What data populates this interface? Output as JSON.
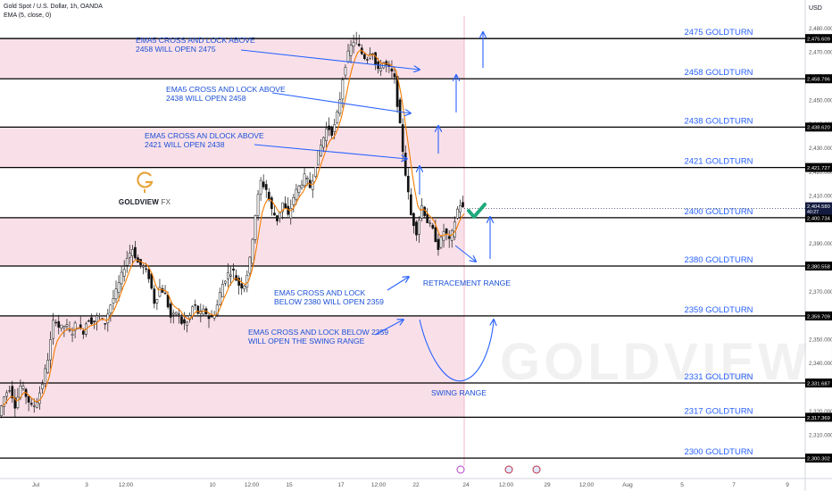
{
  "header": {
    "symbol_line": "Gold Spot / U.S. Dollar, 1h, OANDA",
    "indicator_line": "EMA (5, close, 0)",
    "currency": "USD"
  },
  "brand": {
    "logo_text": "GOLDVIEW",
    "logo_suffix": "FX",
    "watermark": "GOLDVIEW FX"
  },
  "colors": {
    "level_line": "#000000",
    "level_label": "#2962ff",
    "annotation": "#1a4fd6",
    "arrow": "#2962ff",
    "zone_fill": "#f8dbe4",
    "ema_line": "#f57c00",
    "candle_body": "#111111",
    "price_badge": "#131b3f",
    "check": "#1ea97c"
  },
  "chart_data": {
    "type": "candlestick",
    "instrument": "Gold Spot / U.S. Dollar",
    "timeframe": "1h",
    "source": "OANDA",
    "indicator": "EMA (5, close, 0)",
    "ylim": [
      2297,
      2485
    ],
    "y_ticks": [
      "2,480.000",
      "2,470.000",
      "2,460.000",
      "2,450.000",
      "2,440.000",
      "2,430.000",
      "2,420.000",
      "2,410.000",
      "2,390.000",
      "2,370.000",
      "2,360.000",
      "2,350.000",
      "2,340.000",
      "2,320.000",
      "2,310.000"
    ],
    "x_ticks": [
      "Jul",
      "3",
      "12:00",
      "10",
      "12:00",
      "15",
      "17",
      "12:00",
      "22",
      "24",
      "12:00",
      "29",
      "12:00",
      "Aug",
      "5",
      "7",
      "9"
    ],
    "levels": [
      {
        "price": 2475.609,
        "price_label": "2,475.609",
        "label": "2475 GOLDTURN"
      },
      {
        "price": 2458.796,
        "price_label": "2,458.796",
        "label": "2458 GOLDTURN"
      },
      {
        "price": 2438.62,
        "price_label": "2,438.620",
        "label": "2438 GOLDTURN"
      },
      {
        "price": 2421.727,
        "price_label": "2,421.727",
        "label": "2421 GOLDTURN"
      },
      {
        "price": 2400.734,
        "price_label": "2,400.734",
        "label": "2400 GOLDTURN"
      },
      {
        "price": 2380.558,
        "price_label": "2,380.558",
        "label": "2380 GOLDTURN"
      },
      {
        "price": 2359.709,
        "price_label": "2,359.709",
        "label": "2359 GOLDTURN"
      },
      {
        "price": 2331.687,
        "price_label": "2,331.687",
        "label": "2331 GOLDTURN"
      },
      {
        "price": 2317.369,
        "price_label": "2,317.369",
        "label": "2317 GOLDTURN"
      },
      {
        "price": 2300.302,
        "price_label": "2,300.302",
        "label": "2300 GOLDTURN"
      }
    ],
    "zones": [
      {
        "from": 2458.796,
        "to": 2475.609
      },
      {
        "from": 2421.727,
        "to": 2438.62
      },
      {
        "from": 2380.558,
        "to": 2400.734
      },
      {
        "from": 2317.369,
        "to": 2359.709
      }
    ],
    "current_price": {
      "value": 2404.58,
      "label": "2,404.580",
      "countdown": "40:27"
    },
    "price_path": [
      [
        0.0,
        2318
      ],
      [
        0.012,
        2326
      ],
      [
        0.024,
        2330
      ],
      [
        0.036,
        2322
      ],
      [
        0.048,
        2331
      ],
      [
        0.06,
        2326
      ],
      [
        0.072,
        2321
      ],
      [
        0.084,
        2325
      ],
      [
        0.096,
        2333
      ],
      [
        0.108,
        2344
      ],
      [
        0.12,
        2360
      ],
      [
        0.132,
        2354
      ],
      [
        0.144,
        2356
      ],
      [
        0.156,
        2352
      ],
      [
        0.168,
        2357
      ],
      [
        0.18,
        2352
      ],
      [
        0.192,
        2359
      ],
      [
        0.204,
        2357
      ],
      [
        0.216,
        2360
      ],
      [
        0.228,
        2356
      ],
      [
        0.24,
        2364
      ],
      [
        0.252,
        2369
      ],
      [
        0.264,
        2376
      ],
      [
        0.276,
        2384
      ],
      [
        0.288,
        2388
      ],
      [
        0.3,
        2382
      ],
      [
        0.312,
        2380
      ],
      [
        0.324,
        2376
      ],
      [
        0.336,
        2365
      ],
      [
        0.348,
        2372
      ],
      [
        0.36,
        2368
      ],
      [
        0.372,
        2358
      ],
      [
        0.384,
        2362
      ],
      [
        0.396,
        2356
      ],
      [
        0.408,
        2357
      ],
      [
        0.42,
        2365
      ],
      [
        0.432,
        2360
      ],
      [
        0.444,
        2362
      ],
      [
        0.456,
        2358
      ],
      [
        0.468,
        2362
      ],
      [
        0.48,
        2372
      ],
      [
        0.492,
        2377
      ],
      [
        0.504,
        2379
      ],
      [
        0.516,
        2373
      ],
      [
        0.528,
        2372
      ],
      [
        0.54,
        2381
      ],
      [
        0.552,
        2401
      ],
      [
        0.564,
        2416
      ],
      [
        0.576,
        2413
      ],
      [
        0.588,
        2404
      ],
      [
        0.6,
        2400
      ],
      [
        0.612,
        2407
      ],
      [
        0.624,
        2401
      ],
      [
        0.636,
        2410
      ],
      [
        0.648,
        2414
      ],
      [
        0.66,
        2418
      ],
      [
        0.672,
        2413
      ],
      [
        0.684,
        2425
      ],
      [
        0.696,
        2432
      ],
      [
        0.708,
        2439
      ],
      [
        0.72,
        2436
      ],
      [
        0.732,
        2446
      ],
      [
        0.744,
        2463
      ],
      [
        0.756,
        2471
      ],
      [
        0.768,
        2476
      ],
      [
        0.78,
        2470
      ],
      [
        0.792,
        2467
      ],
      [
        0.804,
        2472
      ],
      [
        0.816,
        2461
      ],
      [
        0.828,
        2466
      ],
      [
        0.84,
        2463
      ],
      [
        0.852,
        2460
      ],
      [
        0.864,
        2440
      ],
      [
        0.876,
        2420
      ],
      [
        0.888,
        2402
      ],
      [
        0.9,
        2395
      ],
      [
        0.912,
        2406
      ],
      [
        0.924,
        2399
      ],
      [
        0.936,
        2395
      ],
      [
        0.948,
        2388
      ],
      [
        0.96,
        2396
      ],
      [
        0.972,
        2390
      ],
      [
        0.984,
        2401
      ],
      [
        0.992,
        2407
      ],
      [
        1.0,
        2404.58
      ]
    ],
    "range_markers": [
      {
        "label": "RETRACEMENT RANGE"
      },
      {
        "label": "SWING RANGE"
      }
    ]
  },
  "annotations": [
    {
      "line1": "EMA5 CROSS AND LOCK ABOVE",
      "line2": "2458 WILL OPEN 2475"
    },
    {
      "line1": "EMA5 CROSS AND LOCK ABOVE",
      "line2": "2438 WILL OPEN 2458"
    },
    {
      "line1": "EMA5 CROSS AN DLOCK ABOVE",
      "line2": "2421 WILL OPEN 2438"
    },
    {
      "line1": "EMA5 CROSS AND LOCK",
      "line2": "BELOW 2380 WILL OPEN 2359"
    },
    {
      "line1": "EMA5 CROSS AND LOCK BELOW 2359",
      "line2": "WILL OPEN THE SWING RANGE"
    }
  ]
}
